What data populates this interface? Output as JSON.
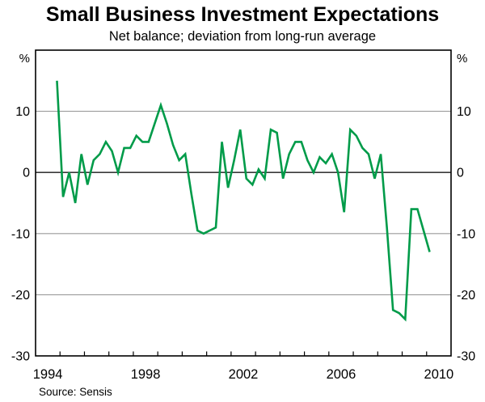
{
  "header": {
    "title": "Small Business Investment Expectations",
    "subtitle": "Net balance; deviation from long-run average"
  },
  "footer": {
    "source": "Source: Sensis"
  },
  "axes": {
    "unit_left": "%",
    "unit_right": "%",
    "y_tick_labels": [
      "10",
      "0",
      "-10",
      "-20",
      "-30"
    ],
    "x_tick_labels": [
      "1994",
      "1998",
      "2002",
      "2006",
      "2010"
    ]
  },
  "colors": {
    "line_green": "#009B49",
    "grid": "#9a9a9a",
    "zero_line": "#3a3a3a",
    "frame": "#000000"
  },
  "chart_data": {
    "type": "line",
    "title": "Small Business Investment Expectations",
    "subtitle": "Net balance; deviation from long-run average",
    "source": "Source: Sensis",
    "ylabel": "%",
    "xlabel": "",
    "xlim": [
      1994,
      2011
    ],
    "ylim": [
      -30,
      20
    ],
    "gridlines": [
      10,
      0,
      -10,
      -20
    ],
    "yticks": [
      10,
      0,
      -10,
      -20,
      -30
    ],
    "labeled_years": [
      1994,
      1998,
      2002,
      2006,
      2010
    ],
    "year_ticks_from": 1995,
    "year_ticks_to": 2010,
    "grid": "horizontal-only",
    "legend_position": "none",
    "series": [
      {
        "name": "Small business investment expectations (net balance; deviation from long-run average)",
        "color": "#009B49",
        "quarters": [
          "1994Q4",
          "1995Q1",
          "1995Q2",
          "1995Q3",
          "1995Q4",
          "1996Q1",
          "1996Q2",
          "1996Q3",
          "1996Q4",
          "1997Q1",
          "1997Q2",
          "1997Q3",
          "1997Q4",
          "1998Q1",
          "1998Q2",
          "1998Q3",
          "1998Q4",
          "1999Q1",
          "1999Q2",
          "1999Q3",
          "1999Q4",
          "2000Q1",
          "2000Q2",
          "2000Q3",
          "2000Q4",
          "2001Q1",
          "2001Q2",
          "2001Q3",
          "2001Q4",
          "2002Q1",
          "2002Q2",
          "2002Q3",
          "2002Q4",
          "2003Q1",
          "2003Q2",
          "2003Q3",
          "2003Q4",
          "2004Q1",
          "2004Q2",
          "2004Q3",
          "2004Q4",
          "2005Q1",
          "2005Q2",
          "2005Q3",
          "2005Q4",
          "2006Q1",
          "2006Q2",
          "2006Q3",
          "2006Q4",
          "2007Q1",
          "2007Q2",
          "2007Q3",
          "2007Q4",
          "2008Q1",
          "2008Q2",
          "2008Q3",
          "2008Q4",
          "2009Q1",
          "2009Q2",
          "2009Q3",
          "2009Q4",
          "2010Q1"
        ],
        "values": [
          15,
          -4,
          0,
          -5,
          3,
          -2,
          2,
          3,
          5,
          3.5,
          0,
          4,
          4,
          6,
          5,
          5,
          8,
          11,
          8,
          4.5,
          2,
          3,
          -3.5,
          -9.5,
          -10,
          -9.5,
          -9,
          5,
          -2.5,
          2,
          7,
          -1,
          -2,
          0.5,
          -1,
          7,
          6.5,
          -1,
          3,
          5,
          5,
          2,
          0,
          2.5,
          1.5,
          3,
          0,
          -6.5,
          7,
          6,
          4,
          3,
          -1,
          3,
          -9,
          -22.5,
          -23,
          -24,
          -6,
          -6,
          -9.5,
          -13
        ]
      }
    ]
  }
}
